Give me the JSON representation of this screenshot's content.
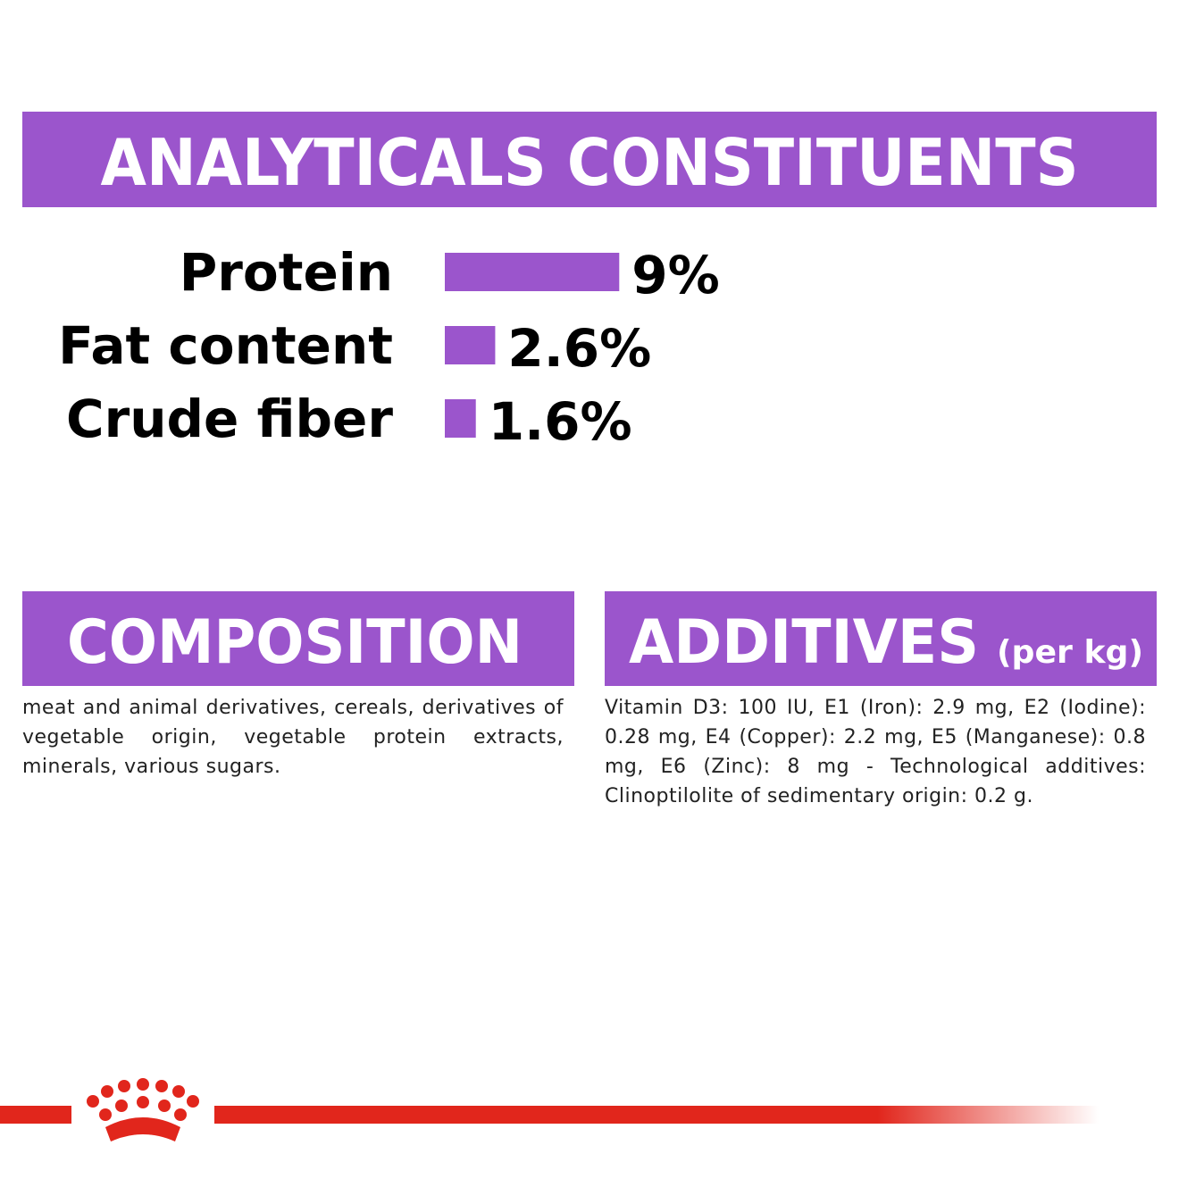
{
  "chart_data": {
    "type": "bar",
    "title": "ANALYTICALS CONSTITUENTS",
    "categories": [
      "Protein",
      "Fat content",
      "Crude fiber"
    ],
    "values": [
      9,
      2.6,
      1.6
    ],
    "value_labels": [
      "9%",
      "2.6%",
      "1.6%"
    ],
    "color": "#9b55cc"
  },
  "composition": {
    "title": "COMPOSITION",
    "text": "meat and animal derivatives, cereals, derivatives of vegetable origin, vegetable protein extracts, minerals, various sugars."
  },
  "additives": {
    "title": "ADDITIVES",
    "unit": "(per kg)",
    "text": "Vitamin D3: 100 IU, E1 (Iron): 2.9 mg, E2 (Iodine): 0.28 mg, E4 (Copper): 2.2 mg, E5 (Manganese): 0.8 mg, E6 (Zinc): 8 mg - Technological additives: Clinoptilolite of sedimentary origin: 0.2 g."
  }
}
